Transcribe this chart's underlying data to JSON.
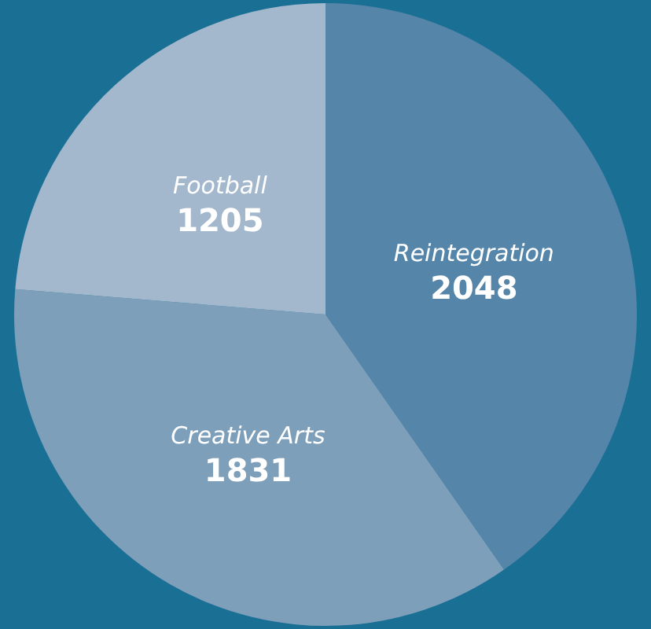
{
  "chart_data": {
    "type": "pie",
    "categories": [
      "Reintegration",
      "Creative Arts",
      "Football"
    ],
    "values": [
      2048,
      1831,
      1205
    ],
    "colors": [
      "#5585a8",
      "#7e9fba",
      "#a3b8cc"
    ],
    "data_labels": true,
    "legend": false
  }
}
